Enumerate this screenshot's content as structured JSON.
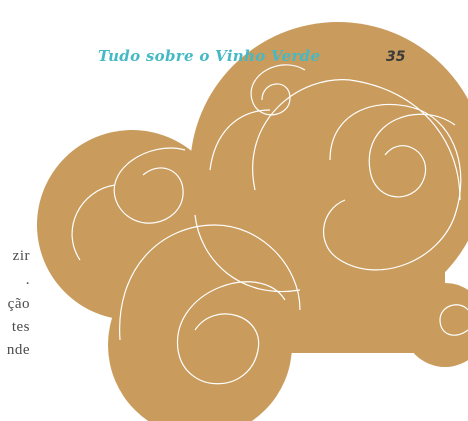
{
  "header": {
    "title": "Tudo sobre o Vinho Verde",
    "page_number": "35"
  },
  "body": {
    "lines": [
      "zir",
      ".",
      "ção",
      "tes",
      "nde"
    ]
  }
}
